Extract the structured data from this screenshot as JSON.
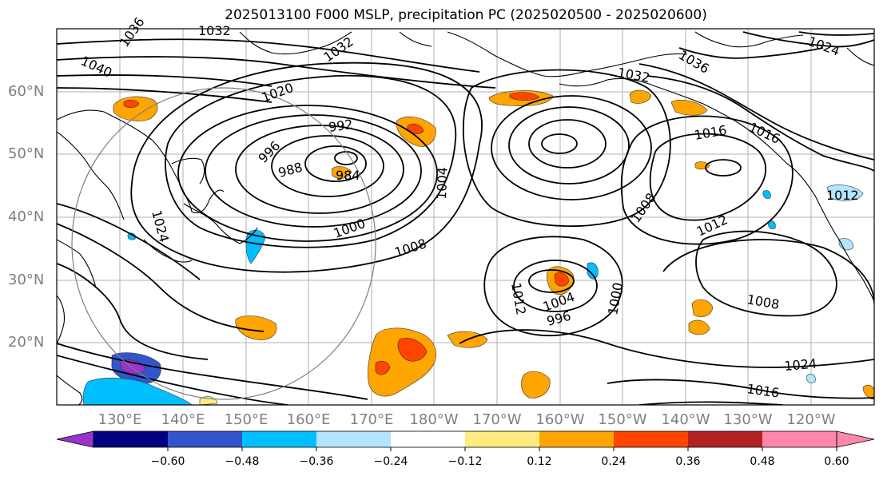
{
  "title": "2025013100 F000 MSLP, precipitation PC (2025020500 - 2025020600)",
  "lat_labels": [
    "60°N",
    "50°N",
    "40°N",
    "30°N",
    "20°N"
  ],
  "lon_labels": [
    "130°E",
    "140°E",
    "150°E",
    "160°E",
    "170°E",
    "180°W",
    "170°W",
    "160°W",
    "150°W",
    "140°W",
    "130°W",
    "120°W"
  ],
  "isobar_labels": [
    "1032",
    "1036",
    "1040",
    "1032",
    "1020",
    "992",
    "996",
    "988",
    "984",
    "1004",
    "1000",
    "1008",
    "1024",
    "1036",
    "1032",
    "1016",
    "1016",
    "1012",
    "1008",
    "1012",
    "1004",
    "996",
    "1000",
    "1008",
    "1024",
    "1016",
    "1012",
    "1024"
  ],
  "colorbar": {
    "tick_labels": [
      "−0.60",
      "−0.48",
      "−0.36",
      "−0.24",
      "−0.12",
      "0.12",
      "0.24",
      "0.36",
      "0.48",
      "0.60"
    ],
    "colors": [
      "#9933cc",
      "#000080",
      "#3355cc",
      "#00bfff",
      "#b3e5ff",
      "#ffffff",
      "#ffeb80",
      "#ffa500",
      "#ff4500",
      "#b22222",
      "#ff88aa",
      "#ff88aa"
    ]
  }
}
